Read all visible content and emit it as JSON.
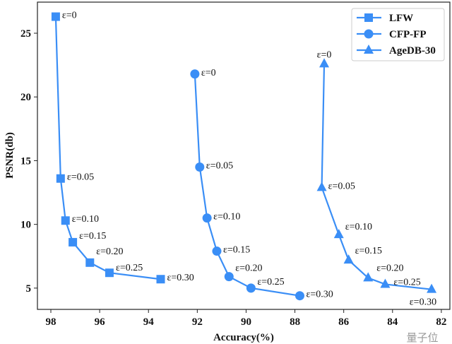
{
  "chart_data": {
    "type": "line",
    "title": "",
    "xlabel": "Accuracy(%)",
    "ylabel": "PSNR(db)",
    "xlim": [
      98.55,
      81.65
    ],
    "ylim": [
      3.33,
      27.44
    ],
    "x_reversed": true,
    "xticks": [
      "98",
      "96",
      "94",
      "92",
      "90",
      "88",
      "86",
      "84",
      "82"
    ],
    "xtick_values": [
      98,
      96,
      94,
      92,
      90,
      88,
      86,
      84,
      82
    ],
    "yticks": [
      "5",
      "10",
      "15",
      "20",
      "25"
    ],
    "ytick_values": [
      5,
      10,
      15,
      20,
      25
    ],
    "grid": false,
    "legend_position": "top-right",
    "color": "#3a8ef6",
    "series": [
      {
        "name": "LFW",
        "marker": "square",
        "x": [
          97.8,
          97.6,
          97.4,
          97.1,
          96.4,
          95.6,
          93.5
        ],
        "y": [
          26.3,
          13.6,
          10.3,
          8.6,
          7.0,
          6.2,
          5.7
        ],
        "labels": [
          "ε=0",
          "ε=0.05",
          "ε=0.10",
          "ε=0.15",
          "ε=0.20",
          "ε=0.25",
          "ε=0.30"
        ]
      },
      {
        "name": "CFP-FP",
        "marker": "circle",
        "x": [
          92.1,
          91.9,
          91.6,
          91.2,
          90.7,
          89.8,
          87.8
        ],
        "y": [
          21.8,
          14.5,
          10.5,
          7.9,
          5.9,
          5.0,
          4.4
        ],
        "labels": [
          "ε=0",
          "ε=0.05",
          "ε=0.10",
          "ε=0.15",
          "ε=0.20",
          "ε=0.25",
          "ε=0.30"
        ]
      },
      {
        "name": "AgeDB-30",
        "marker": "triangle",
        "x": [
          86.8,
          86.9,
          86.2,
          85.8,
          85.0,
          84.3,
          82.4
        ],
        "y": [
          22.6,
          12.9,
          9.2,
          7.2,
          5.8,
          5.3,
          4.9
        ],
        "labels": [
          "ε=0",
          "ε=0.05",
          "ε=0.10",
          "ε=0.15",
          "ε=0.20",
          "ε=0.25",
          "ε=0.30"
        ]
      }
    ]
  },
  "watermark": "量子位"
}
